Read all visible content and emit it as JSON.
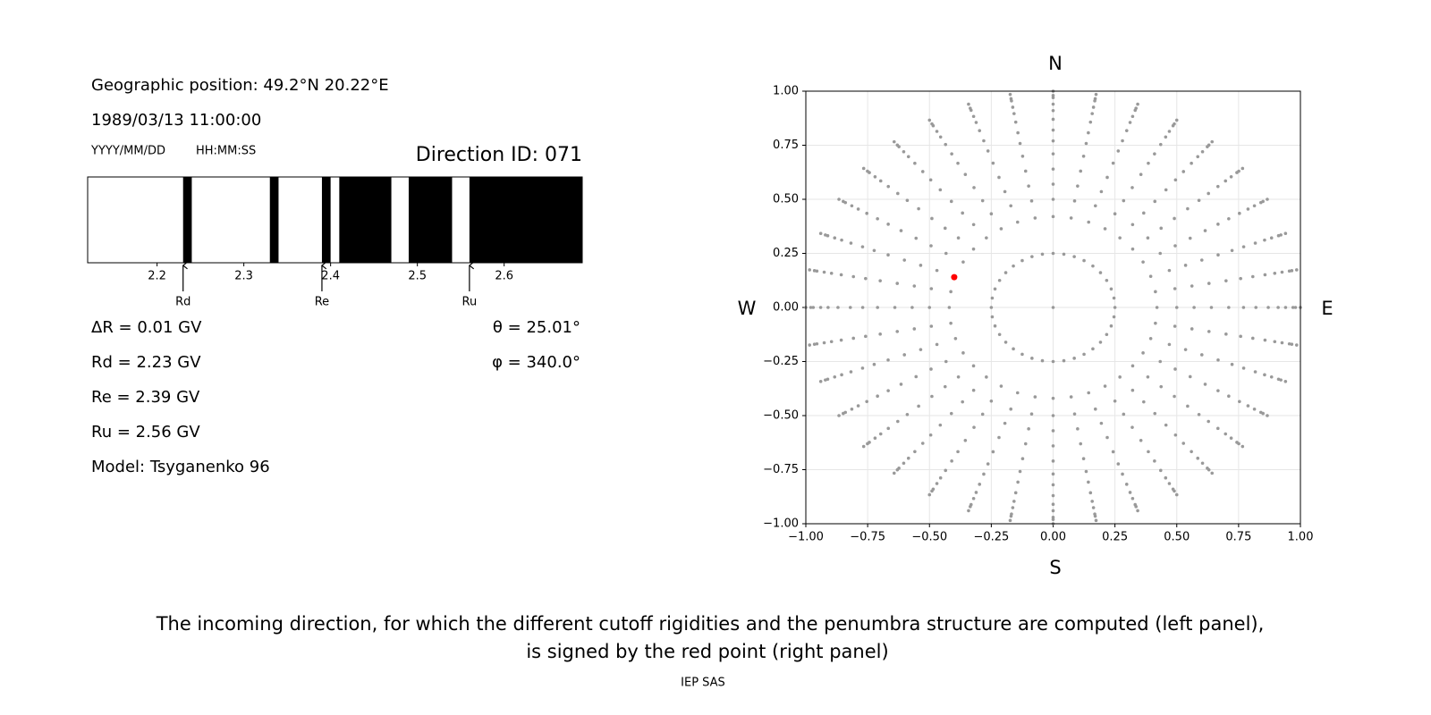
{
  "info": {
    "position": "Geographic position: 49.2°N 20.22°E",
    "datetime": "1989/03/13 11:00:00",
    "date_format": "YYYY/MM/DD",
    "time_format": "HH:MM:SS",
    "direction_id": "Direction ID: 071",
    "left_params": [
      "ΔR = 0.01 GV",
      "Rd = 2.23 GV",
      "Re = 2.39 GV",
      "Ru = 2.56 GV",
      "Model: Tsyganenko 96"
    ],
    "right_params": [
      "θ = 25.01°",
      "φ = 340.0°"
    ]
  },
  "chart_data": [
    {
      "type": "penumbra",
      "color": "#000000",
      "intervals": [
        [
          2.23,
          2.24
        ],
        [
          2.33,
          2.34
        ],
        [
          2.39,
          2.4
        ],
        [
          2.41,
          2.47
        ],
        [
          2.49,
          2.54
        ],
        [
          2.56,
          2.69
        ]
      ],
      "xlim": [
        2.12,
        2.69
      ],
      "xticks": [
        2.2,
        2.3,
        2.4,
        2.5,
        2.6
      ],
      "markers": [
        {
          "name": "Rd",
          "value": 2.23
        },
        {
          "name": "Re",
          "value": 2.39
        },
        {
          "name": "Ru",
          "value": 2.56
        }
      ]
    },
    {
      "type": "scatter",
      "xlim": [
        -1,
        1
      ],
      "ylim": [
        -1,
        1
      ],
      "xticks": [
        {
          "value": -1,
          "label": "−1.00"
        },
        {
          "value": -0.75,
          "label": "−0.75"
        },
        {
          "value": -0.5,
          "label": "−0.50"
        },
        {
          "value": -0.25,
          "label": "−0.25"
        },
        {
          "value": 0,
          "label": "0.00"
        },
        {
          "value": 0.25,
          "label": "0.25"
        },
        {
          "value": 0.5,
          "label": "0.50"
        },
        {
          "value": 0.75,
          "label": "0.75"
        },
        {
          "value": 1,
          "label": "1.00"
        }
      ],
      "yticks": [
        {
          "value": -1,
          "label": "−1.00"
        },
        {
          "value": -0.75,
          "label": "−0.75"
        },
        {
          "value": -0.5,
          "label": "−0.50"
        },
        {
          "value": -0.25,
          "label": "−0.25"
        },
        {
          "value": 0,
          "label": "0.00"
        },
        {
          "value": 0.25,
          "label": "0.25"
        },
        {
          "value": 0.5,
          "label": "0.50"
        },
        {
          "value": 0.75,
          "label": "0.75"
        },
        {
          "value": 1,
          "label": "1.00"
        }
      ],
      "grid": true,
      "compass": {
        "north": "N",
        "south": "S",
        "west": "W",
        "east": "E"
      },
      "grid_points": {
        "color": "#999999",
        "azimuths": [
          0,
          10,
          20,
          30,
          40,
          50,
          60,
          70,
          80,
          90,
          100,
          110,
          120,
          130,
          140,
          150,
          160,
          170,
          180,
          190,
          200,
          210,
          220,
          230,
          240,
          250,
          260,
          270,
          280,
          290,
          300,
          310,
          320,
          330,
          340,
          350
        ],
        "radii": [
          0.25,
          0.42,
          0.5,
          0.57,
          0.64,
          0.71,
          0.77,
          0.82,
          0.87,
          0.91,
          0.94,
          0.97,
          0.98,
          1.0
        ]
      },
      "center": {
        "x": 0,
        "y": 0
      },
      "highlight": {
        "x": -0.4,
        "y": 0.14,
        "color": "#ff0000"
      }
    }
  ],
  "caption": [
    "The incoming direction, for which the different cutoff rigidities and the penumbra structure are computed (left panel),",
    "is signed by the red point (right panel)"
  ],
  "footer": "IEP SAS"
}
